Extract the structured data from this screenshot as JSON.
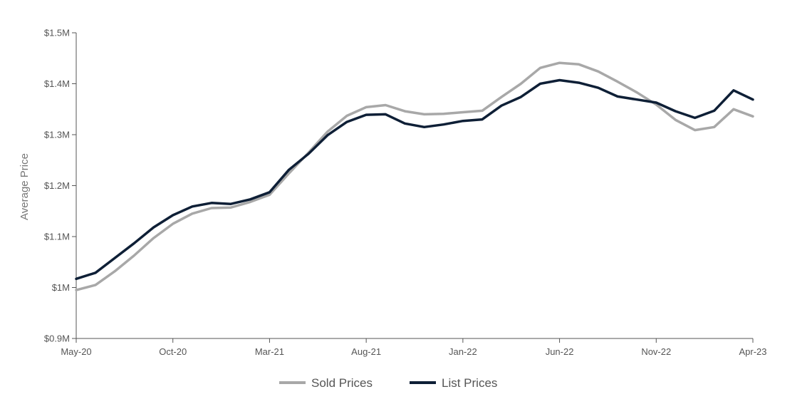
{
  "chart_data": {
    "type": "line",
    "title": "",
    "xlabel": "",
    "ylabel": "Average Price",
    "ylim": [
      900000,
      1500000
    ],
    "grid": false,
    "legend_position": "bottom-center",
    "x": [
      "May-20",
      "Jun-20",
      "Jul-20",
      "Aug-20",
      "Sep-20",
      "Oct-20",
      "Nov-20",
      "Dec-20",
      "Jan-21",
      "Feb-21",
      "Mar-21",
      "Apr-21",
      "May-21",
      "Jun-21",
      "Jul-21",
      "Aug-21",
      "Sep-21",
      "Oct-21",
      "Nov-21",
      "Dec-21",
      "Jan-22",
      "Feb-22",
      "Mar-22",
      "Apr-22",
      "May-22",
      "Jun-22",
      "Jul-22",
      "Aug-22",
      "Sep-22",
      "Oct-22",
      "Nov-22",
      "Dec-22",
      "Jan-23",
      "Feb-23",
      "Mar-23",
      "Apr-23"
    ],
    "x_tick_labels": [
      "May-20",
      "Oct-20",
      "Mar-21",
      "Aug-21",
      "Jan-22",
      "Jun-22",
      "Nov-22",
      "Apr-23"
    ],
    "y_ticks": [
      900000,
      1000000,
      1100000,
      1200000,
      1300000,
      1400000,
      1500000
    ],
    "y_tick_labels": [
      "$0.9M",
      "$1M",
      "$1.1M",
      "$1.2M",
      "$1.3M",
      "$1.4M",
      "$1.5M"
    ],
    "series": [
      {
        "name": "Sold Prices",
        "color": "#a8a8a8",
        "values": [
          995000,
          1005000,
          1032000,
          1063000,
          1097000,
          1125000,
          1145000,
          1156000,
          1157000,
          1168000,
          1182000,
          1224000,
          1264000,
          1306000,
          1337000,
          1354000,
          1358000,
          1346000,
          1340000,
          1341000,
          1344000,
          1347000,
          1374000,
          1400000,
          1431000,
          1441000,
          1438000,
          1424000,
          1404000,
          1383000,
          1359000,
          1329000,
          1309000,
          1315000,
          1350000,
          1336000
        ]
      },
      {
        "name": "List Prices",
        "color": "#0e1f36",
        "values": [
          1017000,
          1029000,
          1058000,
          1087000,
          1118000,
          1142000,
          1159000,
          1166000,
          1164000,
          1173000,
          1187000,
          1231000,
          1262000,
          1299000,
          1325000,
          1339000,
          1340000,
          1322000,
          1315000,
          1320000,
          1327000,
          1330000,
          1357000,
          1374000,
          1400000,
          1407000,
          1402000,
          1392000,
          1375000,
          1369000,
          1363000,
          1346000,
          1333000,
          1347000,
          1387000,
          1369000
        ]
      }
    ]
  }
}
